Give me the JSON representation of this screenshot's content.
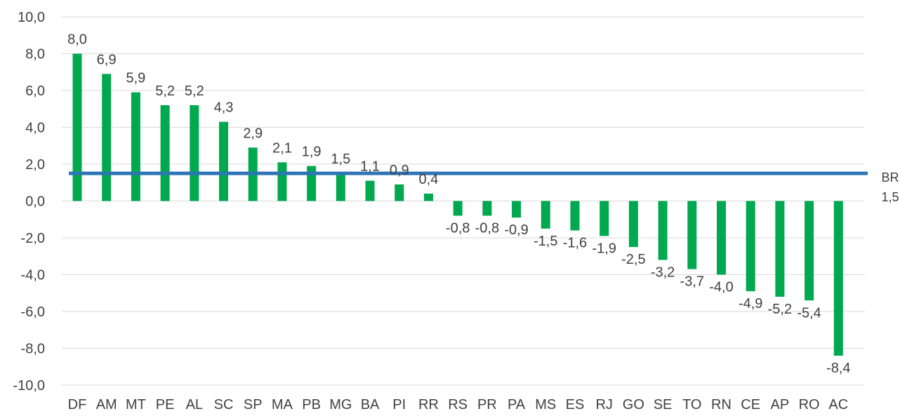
{
  "chart_data": {
    "type": "bar",
    "title": "",
    "xlabel": "",
    "ylabel": "",
    "ylim": [
      -10,
      10
    ],
    "y_ticks": [
      "10,0",
      "8,0",
      "6,0",
      "4,0",
      "2,0",
      "0,0",
      "-2,0",
      "-4,0",
      "-6,0",
      "-8,0",
      "-10,0"
    ],
    "grid": true,
    "categories": [
      "DF",
      "AM",
      "MT",
      "PE",
      "AL",
      "SC",
      "SP",
      "MA",
      "PB",
      "MG",
      "BA",
      "PI",
      "RR",
      "RS",
      "PR",
      "PA",
      "MS",
      "ES",
      "RJ",
      "GO",
      "SE",
      "TO",
      "RN",
      "CE",
      "AP",
      "RO",
      "AC"
    ],
    "values": [
      8.0,
      6.9,
      5.9,
      5.2,
      5.2,
      4.3,
      2.9,
      2.1,
      1.9,
      1.5,
      1.1,
      0.9,
      0.4,
      -0.8,
      -0.8,
      -0.9,
      -1.5,
      -1.6,
      -1.9,
      -2.5,
      -3.2,
      -3.7,
      -4.0,
      -4.9,
      -5.2,
      -5.4,
      -8.4
    ],
    "value_labels": [
      "8,0",
      "6,9",
      "5,9",
      "5,2",
      "5,2",
      "4,3",
      "2,9",
      "2,1",
      "1,9",
      "1,5",
      "1,1",
      "0,9",
      "0,4",
      "-0,8",
      "-0,8",
      "-0,9",
      "-1,5",
      "-1,6",
      "-1,9",
      "-2,5",
      "-3,2",
      "-3,7",
      "-4,0",
      "-4,9",
      "-5,2",
      "-5,4",
      "-8,4"
    ],
    "bar_color": "#00A94F",
    "reference_line": {
      "name": "BR",
      "value": 1.5,
      "value_label": "1,5",
      "color": "#2E75B6"
    }
  }
}
